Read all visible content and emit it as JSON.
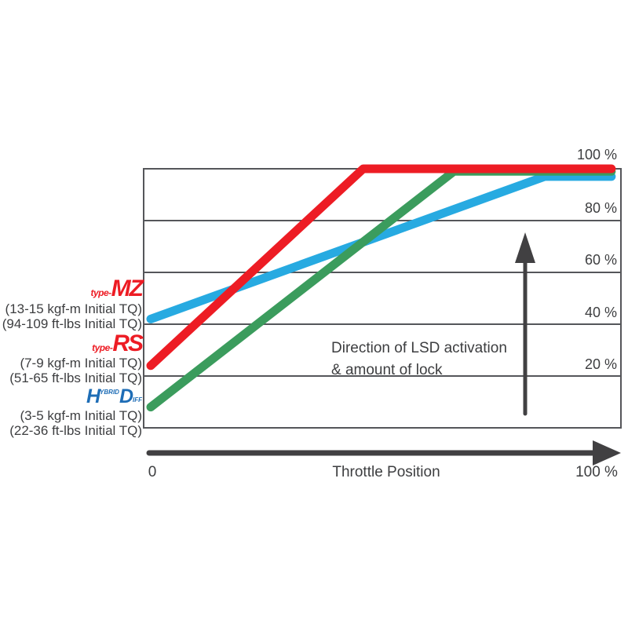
{
  "chart_data": {
    "type": "line",
    "title": "",
    "xlabel": "Throttle Position",
    "ylabel": "",
    "xlim": [
      0,
      100
    ],
    "ylim": [
      0,
      100
    ],
    "x_axis": {
      "min_label": "0",
      "max_label": "100 %",
      "title": "Throttle Position"
    },
    "y_ticks": [
      {
        "label": "100 %",
        "value": 100
      },
      {
        "label": "80 %",
        "value": 80
      },
      {
        "label": "60 %",
        "value": 60
      },
      {
        "label": "40 %",
        "value": 40
      },
      {
        "label": "20 %",
        "value": 20
      }
    ],
    "grid": true,
    "legend_position": "left",
    "series": [
      {
        "name": "type-MZ",
        "color": "#27aae1",
        "points": [
          [
            0,
            42
          ],
          [
            84,
            97
          ],
          [
            98,
            97
          ]
        ]
      },
      {
        "name": "HYBRID Diff",
        "color": "#3b9c5d",
        "points": [
          [
            0,
            8
          ],
          [
            65,
            99
          ],
          [
            98,
            99
          ]
        ]
      },
      {
        "name": "type-RS",
        "color": "#ed1c24",
        "points": [
          [
            0,
            24
          ],
          [
            46,
            100
          ],
          [
            98,
            100
          ]
        ]
      }
    ],
    "annotation": {
      "line1": "Direction of LSD activation",
      "line2": "& amount of lock"
    }
  },
  "legend": {
    "mz": {
      "prefix": "type-",
      "name": "MZ",
      "torque_metric": "(13-15 kgf-m Initial TQ)",
      "torque_imperial": "(94-109 ft-lbs Initial TQ)"
    },
    "rs": {
      "prefix": "type-",
      "name": "RS",
      "torque_metric": "(7-9 kgf-m Initial TQ)",
      "torque_imperial": "(51-65 ft-lbs Initial TQ)"
    },
    "hd": {
      "letter_h": "H",
      "small_top": "YBRID",
      "letter_d": "D",
      "small_bottom": "IFF",
      "torque_metric": "(3-5 kgf-m Initial TQ)",
      "torque_imperial": "(22-36 ft-lbs Initial TQ)"
    }
  },
  "colors": {
    "mz_line": "#27aae1",
    "rs_line": "#ed1c24",
    "hd_line": "#3b9c5d",
    "brand_red": "#ed1c24",
    "brand_blue": "#1e6db6",
    "axis_arrow": "#414042",
    "grid": "#55565a",
    "text": "#3d3e40"
  }
}
